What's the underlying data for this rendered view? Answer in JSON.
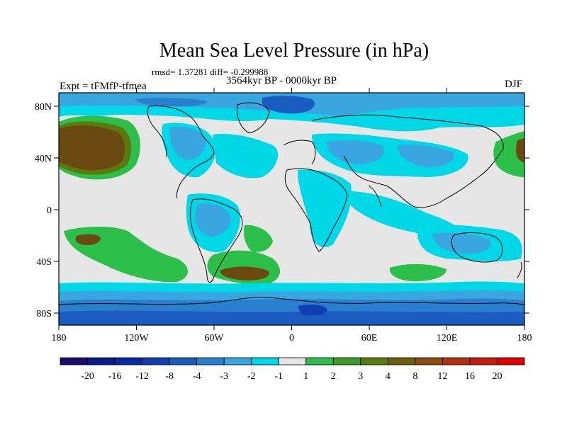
{
  "header": {
    "title": "Mean Sea Level Pressure (in hPa)",
    "stats": "rmsd= 1.37281  diff= -0.299988",
    "period": "3564kyr BP - 0000kyr BP",
    "experiment": "Expt = tFMfP-tfmea",
    "season": "DJF"
  },
  "axes": {
    "lat_labels": [
      "80N",
      "40N",
      "0",
      "40S",
      "80S"
    ],
    "lon_labels": [
      "180",
      "120W",
      "60W",
      "0",
      "60E",
      "120E",
      "180"
    ]
  },
  "colorbar": {
    "labels": [
      "-20",
      "-16",
      "-12",
      "-8",
      "-4",
      "-3",
      "-2",
      "-1",
      "1",
      "2",
      "3",
      "4",
      "8",
      "12",
      "16",
      "20"
    ],
    "colors": [
      "#1a0d6b",
      "#0a1a8c",
      "#0b2aa0",
      "#1040b0",
      "#1a5cbf",
      "#2a7fcf",
      "#3aa6df",
      "#00d8e8",
      "#e6e6e6",
      "#2cbf4a",
      "#3a9a2a",
      "#5a7a10",
      "#6a6010",
      "#8a4a10",
      "#b03010",
      "#c81a10",
      "#e00000"
    ]
  },
  "legend_colors": {
    "land_outline": "#000000",
    "neutral": "#e6e6e6",
    "cyan": "#00d8e8",
    "light_blue": "#3aa6df",
    "mid_blue": "#2a7fcf",
    "deep_blue": "#1a5cbf",
    "green": "#2cbf4a",
    "olive": "#5a7a10",
    "brown": "#6a4a10"
  }
}
